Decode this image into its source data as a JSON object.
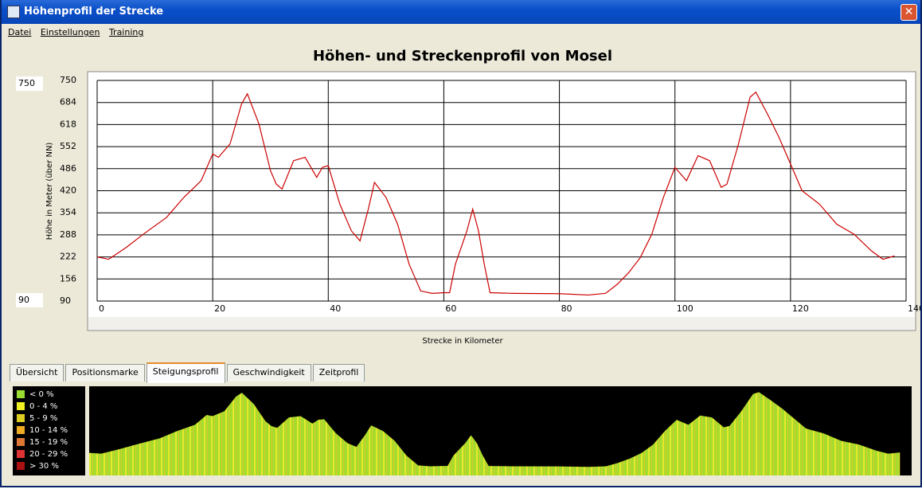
{
  "window": {
    "title": "Höhenprofil der Strecke"
  },
  "menu": [
    "Datei",
    "Einstellungen",
    "Training"
  ],
  "inputs": {
    "max": "750",
    "min": "90"
  },
  "chart_data": {
    "type": "line",
    "title": "Höhen- und Streckenprofil von Mosel",
    "x_label": "Strecke in Kilometer",
    "y_label": "Höhe in Meter (über NN)",
    "xlim": [
      0,
      140
    ],
    "xticks": [
      0,
      20,
      40,
      60,
      80,
      100,
      120,
      140
    ],
    "ylim": [
      90,
      750
    ],
    "yticks": [
      90,
      156,
      222,
      288,
      354,
      420,
      486,
      552,
      618,
      684,
      750
    ],
    "grid": true,
    "color": "#cc0000",
    "x": [
      0,
      2,
      5,
      8,
      12,
      15,
      18,
      20,
      21,
      23,
      25,
      26,
      28,
      30,
      31,
      32,
      34,
      36,
      38,
      39,
      40,
      42,
      44,
      45.5,
      47,
      48,
      50,
      52,
      54,
      56,
      58,
      60,
      61,
      62,
      64,
      65,
      66,
      67,
      68,
      72,
      80,
      85,
      88,
      90,
      92,
      94,
      96,
      98,
      100,
      102,
      104,
      106,
      108,
      109,
      111,
      113,
      114,
      116,
      118,
      120,
      122,
      125,
      128,
      131,
      134,
      136,
      138
    ],
    "values": [
      222,
      215,
      250,
      290,
      340,
      400,
      450,
      530,
      520,
      560,
      680,
      710,
      620,
      480,
      440,
      425,
      510,
      520,
      460,
      490,
      495,
      380,
      300,
      270,
      370,
      445,
      400,
      320,
      200,
      120,
      113,
      115,
      115,
      200,
      300,
      365,
      300,
      200,
      115,
      113,
      112,
      108,
      113,
      140,
      175,
      220,
      290,
      400,
      490,
      450,
      525,
      510,
      430,
      440,
      560,
      700,
      715,
      650,
      580,
      500,
      420,
      380,
      320,
      290,
      240,
      215,
      225
    ]
  },
  "tabs": [
    "Übersicht",
    "Positionsmarke",
    "Steigungsprofil",
    "Geschwindigkeit",
    "Zeitprofil"
  ],
  "slope_legend": [
    {
      "label": "< 0 %",
      "color": "#99dd33"
    },
    {
      "label": "0 - 4 %",
      "color": "#eeee22"
    },
    {
      "label": "5 - 9 %",
      "color": "#ddcc22"
    },
    {
      "label": "10 - 14 %",
      "color": "#eeaa22"
    },
    {
      "label": "15 - 19 %",
      "color": "#dd7733"
    },
    {
      "label": "20 - 29 %",
      "color": "#dd3333"
    },
    {
      "label": "> 30 %",
      "color": "#aa1111"
    }
  ]
}
